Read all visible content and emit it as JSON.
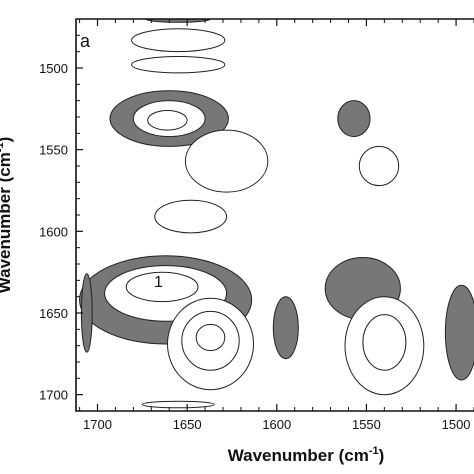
{
  "chart_data": {
    "type": "contour",
    "panel_label": "a",
    "xlabel": "Wavenumber (cm",
    "xlabel_sup": "-1",
    "xlabel_end": ")",
    "ylabel": "Wavenumber (cm",
    "ylabel_sup": "-1",
    "ylabel_end": ")",
    "xlim": [
      1712,
      1490
    ],
    "ylim": [
      1710,
      1470
    ],
    "x_ticks": [
      1700,
      1650,
      1600,
      1550,
      1500
    ],
    "x_tick_labels": [
      "1700",
      "1650",
      "1600",
      "1550",
      "1500"
    ],
    "y_ticks": [
      1500,
      1550,
      1600,
      1650,
      1700
    ],
    "y_tick_labels": [
      "1500",
      "1550",
      "1600",
      "1650",
      "1700"
    ],
    "annotations": [
      {
        "text": "1",
        "x": 1666,
        "y": 1631
      }
    ],
    "colors": {
      "negative_fill": "#777777",
      "positive_fill": "#ffffff",
      "line": "#222222"
    },
    "contours": [
      {
        "sign": "negative",
        "cx": 1655,
        "cy": 1470,
        "rx": 18,
        "ry": 2
      },
      {
        "sign": "positive",
        "cx": 1655,
        "cy": 1483,
        "rx": 26,
        "ry": 7
      },
      {
        "sign": "positive",
        "cx": 1655,
        "cy": 1498,
        "rx": 26,
        "ry": 5
      },
      {
        "sign": "negative",
        "cx": 1660,
        "cy": 1531,
        "rx": 33,
        "ry": 17
      },
      {
        "sign": "positive",
        "cx": 1660,
        "cy": 1531,
        "rx": 20,
        "ry": 11
      },
      {
        "sign": "positive",
        "cx": 1661,
        "cy": 1532,
        "rx": 11,
        "ry": 6
      },
      {
        "sign": "positive",
        "cx": 1628,
        "cy": 1557,
        "rx": 23,
        "ry": 19
      },
      {
        "sign": "positive",
        "cx": 1648,
        "cy": 1591,
        "rx": 20,
        "ry": 10
      },
      {
        "sign": "negative",
        "cx": 1557,
        "cy": 1531,
        "rx": 9,
        "ry": 11
      },
      {
        "sign": "positive",
        "cx": 1543,
        "cy": 1560,
        "rx": 11,
        "ry": 12
      },
      {
        "sign": "negative",
        "cx": 1662,
        "cy": 1642,
        "rx": 48,
        "ry": 27
      },
      {
        "sign": "positive",
        "cx": 1662,
        "cy": 1638,
        "rx": 34,
        "ry": 17
      },
      {
        "sign": "positive",
        "cx": 1664,
        "cy": 1634,
        "rx": 20,
        "ry": 9
      },
      {
        "sign": "positive",
        "cx": 1637,
        "cy": 1669,
        "rx": 24,
        "ry": 28
      },
      {
        "sign": "positive",
        "cx": 1637,
        "cy": 1667,
        "rx": 16,
        "ry": 18
      },
      {
        "sign": "positive",
        "cx": 1637,
        "cy": 1665,
        "rx": 8,
        "ry": 8
      },
      {
        "sign": "positive",
        "cx": 1655,
        "cy": 1706,
        "rx": 20,
        "ry": 2
      },
      {
        "sign": "negative",
        "cx": 1595,
        "cy": 1659,
        "rx": 7,
        "ry": 19
      },
      {
        "sign": "negative",
        "cx": 1552,
        "cy": 1635,
        "rx": 21,
        "ry": 19
      },
      {
        "sign": "positive",
        "cx": 1540,
        "cy": 1670,
        "rx": 22,
        "ry": 30
      },
      {
        "sign": "positive",
        "cx": 1540,
        "cy": 1668,
        "rx": 12,
        "ry": 17
      },
      {
        "sign": "negative",
        "cx": 1497,
        "cy": 1662,
        "rx": 9,
        "ry": 29
      },
      {
        "sign": "negative",
        "cx": 1706,
        "cy": 1650,
        "rx": 3,
        "ry": 24
      }
    ]
  }
}
